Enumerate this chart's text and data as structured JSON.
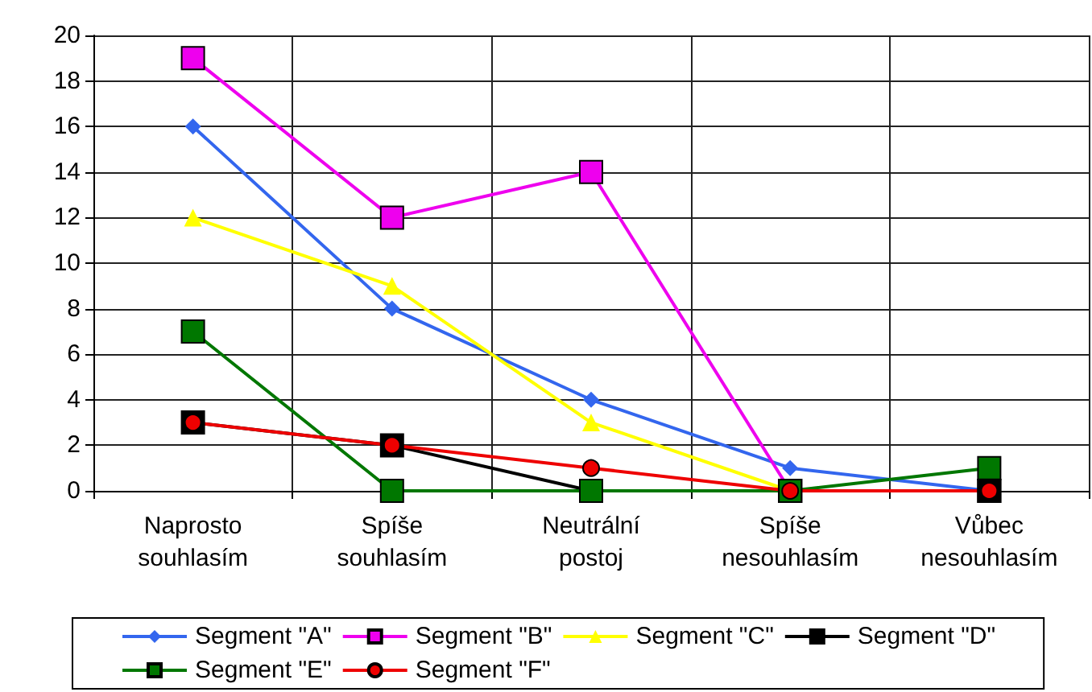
{
  "chart_data": {
    "type": "line",
    "categories": [
      "Naprosto\nsouhlasím",
      "Spíše\nsouhlasím",
      "Neutrální\npostoj",
      "Spíše\nnesouhlasím",
      "Vůbec\nnesouhlasím"
    ],
    "ylim": [
      0,
      20
    ],
    "yticks": [
      0,
      2,
      4,
      6,
      8,
      10,
      12,
      14,
      16,
      18,
      20
    ],
    "grid": true,
    "legend": "bottom",
    "line_style": "solid",
    "series": [
      {
        "name": "Segment \"A\"",
        "color": "#3366ee",
        "marker": "diamond",
        "values": [
          16,
          8,
          4,
          1,
          0
        ]
      },
      {
        "name": "Segment \"B\"",
        "color": "#ee00ee",
        "marker": "square",
        "values": [
          19,
          12,
          14,
          0,
          0
        ]
      },
      {
        "name": "Segment \"C\"",
        "color": "#ffff00",
        "marker": "triangle",
        "values": [
          12,
          9,
          3,
          0,
          0
        ]
      },
      {
        "name": "Segment \"D\"",
        "color": "#000000",
        "marker": "square",
        "values": [
          3,
          2,
          0,
          0,
          0
        ]
      },
      {
        "name": "Segment \"E\"",
        "color": "#007700",
        "marker": "square",
        "values": [
          7,
          0,
          0,
          0,
          1
        ]
      },
      {
        "name": "Segment \"F\"",
        "color": "#ee0000",
        "marker": "circle",
        "values": [
          3,
          2,
          1,
          0,
          0
        ]
      }
    ]
  }
}
